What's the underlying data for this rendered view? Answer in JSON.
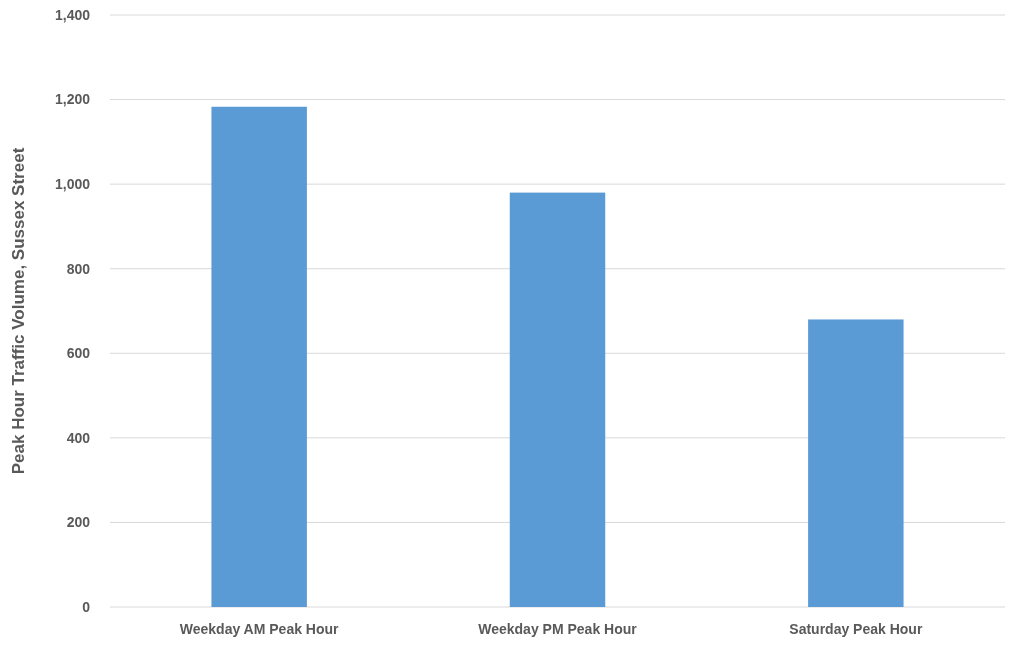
{
  "chart_data": {
    "type": "bar",
    "ylabel": "Peak Hour Traffic Volume, Sussex Street",
    "categories": [
      "Weekday AM Peak Hour",
      "Weekday PM Peak Hour",
      "Saturday Peak Hour"
    ],
    "values": [
      1183,
      980,
      680
    ],
    "color": "#5b9bd5",
    "ylim": [
      0,
      1400
    ],
    "yticks": [
      0,
      {
        "value": 200,
        "label": "200"
      },
      {
        "value": 400,
        "label": "400"
      },
      {
        "value": 600,
        "label": "600"
      },
      {
        "value": 800,
        "label": "800"
      },
      {
        "value": 1000,
        "label": "1,000"
      },
      {
        "value": 1200,
        "label": "1,200"
      },
      {
        "value": 1400,
        "label": "1,400"
      }
    ],
    "grid": "y"
  }
}
